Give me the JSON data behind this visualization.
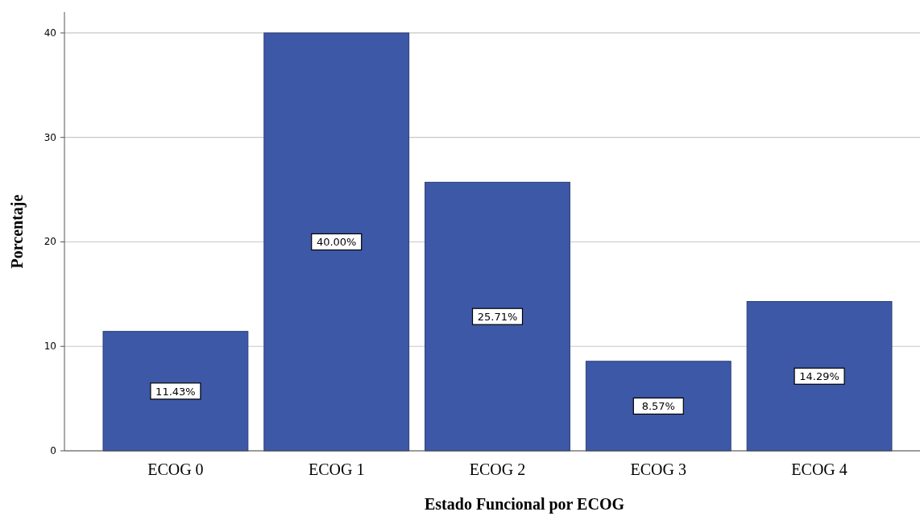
{
  "chart_data": {
    "type": "bar",
    "xlabel": "Estado Funcional por ECOG",
    "ylabel": "Porcentaje",
    "categories": [
      "ECOG 0",
      "ECOG 1",
      "ECOG 2",
      "ECOG 3",
      "ECOG 4"
    ],
    "values": [
      11.43,
      40.0,
      25.71,
      8.57,
      14.29
    ],
    "value_labels": [
      "11.43%",
      "40.00%",
      "25.71%",
      "8.57%",
      "14.29%"
    ],
    "color": "#3d58a7",
    "ylim": [
      0,
      42
    ],
    "yticks": [
      0,
      10,
      20,
      30,
      40
    ],
    "grid": "y"
  }
}
